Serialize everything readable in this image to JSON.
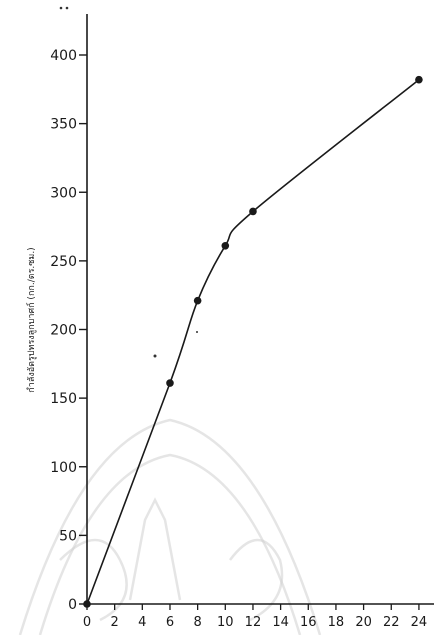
{
  "chart_data": {
    "type": "line",
    "title": "",
    "xlabel": "",
    "ylabel": "กำลังอัดรูปทรงลูกบาศก์ (กก./ตร.ซม.)",
    "x_ticks": [
      0,
      2,
      4,
      6,
      8,
      10,
      12,
      14,
      16,
      18,
      20,
      22,
      24
    ],
    "y_ticks": [
      0,
      50,
      100,
      150,
      200,
      250,
      300,
      350,
      400
    ],
    "xlim": [
      0,
      25
    ],
    "ylim": [
      0,
      430
    ],
    "grid": false,
    "legend": "none",
    "series": [
      {
        "x": [
          0,
          6,
          8,
          10,
          12,
          24
        ],
        "y": [
          0,
          161,
          221,
          261,
          286,
          382
        ]
      }
    ],
    "colors": {
      "line": "#1a1a1a",
      "marker": "#1a1a1a"
    }
  }
}
